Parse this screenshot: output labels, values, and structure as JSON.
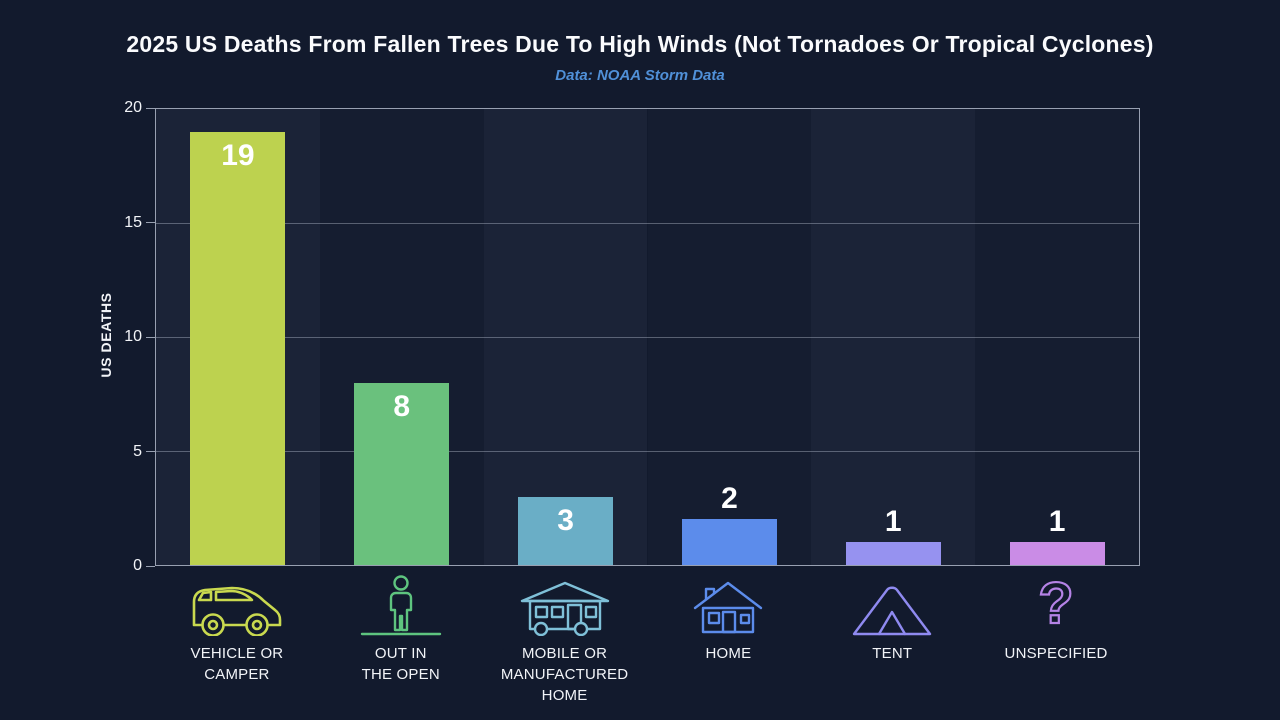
{
  "header": {
    "title": "2025 US Deaths From Fallen Trees Due To High Winds (Not Tornadoes Or Tropical Cyclones)",
    "subtitle": "Data: NOAA Storm Data"
  },
  "chart_data": {
    "type": "bar",
    "title": "2025 US Deaths From Fallen Trees Due To High Winds (Not Tornadoes Or Tropical Cyclones)",
    "subtitle": "Data: NOAA Storm Data",
    "xlabel": "",
    "ylabel": "US DEATHS",
    "ylim": [
      0,
      20
    ],
    "yticks": [
      0,
      5,
      10,
      15,
      20
    ],
    "grid": "horizontal",
    "legend": "none",
    "categories": [
      "VEHICLE OR CAMPER",
      "OUT IN THE OPEN",
      "MOBILE OR MANUFACTURED HOME",
      "HOME",
      "TENT",
      "UNSPECIFIED"
    ],
    "category_label_lines": [
      [
        "VEHICLE OR",
        "CAMPER"
      ],
      [
        "OUT IN",
        "THE OPEN"
      ],
      [
        "MOBILE OR",
        "MANUFACTURED",
        "HOME"
      ],
      [
        "HOME"
      ],
      [
        "TENT"
      ],
      [
        "UNSPECIFIED"
      ]
    ],
    "values": [
      19,
      8,
      3,
      2,
      1,
      1
    ],
    "bar_colors": [
      "#bdd24f",
      "#6ac17d",
      "#6aaec6",
      "#5c8ceb",
      "#9692f0",
      "#ca8ce6"
    ],
    "icon_colors": [
      "#c9d94f",
      "#5ec47f",
      "#7fc0d8",
      "#5c8ceb",
      "#8f8af0",
      "#b583e6"
    ],
    "icons": [
      "vehicle-icon",
      "person-icon",
      "mobile-home-icon",
      "home-icon",
      "tent-icon",
      "question-mark-icon"
    ]
  },
  "colors": {
    "background": "#121a2d",
    "column_band_light": "#1b2337",
    "column_band_dark": "#151d30",
    "axis_line": "#c6cddd",
    "title_text": "#fafbfd",
    "subtitle_text": "#5090d8",
    "value_label": "#ffffff"
  }
}
